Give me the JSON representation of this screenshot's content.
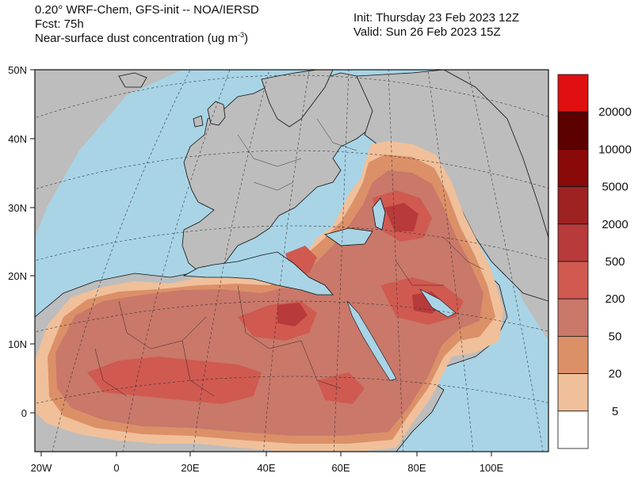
{
  "header": {
    "line1": "0.20° WRF-Chem, GFS-init -- NOA/IERSD",
    "line2": "Fcst: 75h",
    "line3_prefix": "Near-surface dust concentration (ug m",
    "line3_sup": "-3",
    "line3_suffix": ")",
    "init": "Init: Thursday 23 Feb 2023  12Z",
    "valid": "Valid: Sun 26 Feb 2023  15Z"
  },
  "map": {
    "lat_ticks": [
      "50N",
      "40N",
      "30N",
      "20N",
      "10N",
      "0"
    ],
    "lon_ticks": [
      "20W",
      "0",
      "20E",
      "40E",
      "60E",
      "80E",
      "100E"
    ],
    "colors": {
      "ocean": "#a8d4e6",
      "land": "#bdbdbd",
      "coast": "#111111",
      "grid": "#333333"
    }
  },
  "colorbar": {
    "labels": [
      "20000",
      "10000",
      "5000",
      "2000",
      "500",
      "200",
      "50",
      "20",
      "5"
    ],
    "colors": [
      "#e01010",
      "#5c0000",
      "#8a0a0a",
      "#9e2222",
      "#b83a3a",
      "#d05a50",
      "#c9786a",
      "#dc9068",
      "#f0c09a",
      "#ffffff"
    ]
  }
}
